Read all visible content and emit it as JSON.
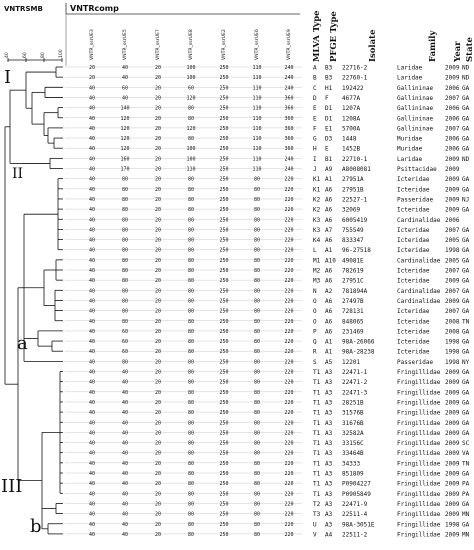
{
  "header": {
    "vntrsmb": "VNTRSMB",
    "vntrcomp": "VNTRcomp"
  },
  "scale": [
    "40",
    "60",
    "80",
    "100"
  ],
  "vntr_columns": [
    "VNTR_ssrUE3",
    "VNTR_ssrUE5",
    "VNTR_ssrUE7",
    "VNTR_ssrUE8",
    "VNTR_ssrUE2",
    "VNTR_ssrUE6",
    "VNTR_ssrUE9"
  ],
  "meta_columns": [
    "MLVA Type",
    "PFGE Type",
    "Isolate",
    "Family",
    "Year",
    "State"
  ],
  "groups": [
    {
      "label": "I",
      "fontsize": 18
    },
    {
      "label": "II",
      "fontsize": 14
    },
    {
      "label": "a",
      "fontsize": 18
    },
    {
      "label": "III",
      "fontsize": 18
    },
    {
      "label": "b",
      "fontsize": 18
    }
  ],
  "rows": [
    {
      "v": [
        "20",
        "40",
        "20",
        "100",
        "250",
        "110",
        "240"
      ],
      "mlva": "A",
      "pfge": "B3",
      "isolate": "22716-2",
      "family": "Laridae",
      "year": "2009",
      "state": "ND"
    },
    {
      "v": [
        "20",
        "40",
        "20",
        "100",
        "250",
        "110",
        "240"
      ],
      "mlva": "B",
      "pfge": "B3",
      "isolate": "22760-1",
      "family": "Laridae",
      "year": "2009",
      "state": "ND"
    },
    {
      "v": [
        "40",
        "60",
        "20",
        "60",
        "250",
        "110",
        "240"
      ],
      "mlva": "C",
      "pfge": "H1",
      "isolate": "192422",
      "family": "Gallininae",
      "year": "2006",
      "state": "GA"
    },
    {
      "v": [
        "40",
        "40",
        "20",
        "120",
        "250",
        "110",
        "360"
      ],
      "mlva": "D",
      "pfge": "F",
      "isolate": "4677A",
      "family": "Gallininae",
      "year": "2007",
      "state": "GA"
    },
    {
      "v": [
        "40",
        "140",
        "20",
        "80",
        "250",
        "110",
        "360"
      ],
      "mlva": "E",
      "pfge": "D1",
      "isolate": "1207A",
      "family": "Gallininae",
      "year": "2006",
      "state": "GA"
    },
    {
      "v": [
        "40",
        "120",
        "20",
        "80",
        "250",
        "110",
        "360"
      ],
      "mlva": "E",
      "pfge": "D1",
      "isolate": "1208A",
      "family": "Gallininae",
      "year": "2006",
      "state": "GA"
    },
    {
      "v": [
        "40",
        "120",
        "20",
        "120",
        "250",
        "110",
        "360"
      ],
      "mlva": "F",
      "pfge": "E1",
      "isolate": "5700A",
      "family": "Gallininae",
      "year": "2007",
      "state": "GA"
    },
    {
      "v": [
        "40",
        "120",
        "20",
        "80",
        "250",
        "110",
        "360"
      ],
      "mlva": "G",
      "pfge": "D3",
      "isolate": "1448",
      "family": "Muridae",
      "year": "2006",
      "state": "GA"
    },
    {
      "v": [
        "40",
        "120",
        "20",
        "100",
        "250",
        "110",
        "360"
      ],
      "mlva": "H",
      "pfge": "E",
      "isolate": "1452B",
      "family": "Muridae",
      "year": "2006",
      "state": "GA"
    },
    {
      "v": [
        "40",
        "160",
        "20",
        "100",
        "250",
        "110",
        "240"
      ],
      "mlva": "I",
      "pfge": "B1",
      "isolate": "22710-1",
      "family": "Laridae",
      "year": "2009",
      "state": "ND"
    },
    {
      "v": [
        "40",
        "170",
        "20",
        "110",
        "250",
        "110",
        "240"
      ],
      "mlva": "J",
      "pfge": "A9",
      "isolate": "A8008081",
      "family": "Psittacidae",
      "year": "2009",
      "state": ""
    },
    {
      "v": [
        "40",
        "80",
        "20",
        "80",
        "250",
        "80",
        "220"
      ],
      "mlva": "K1",
      "pfge": "A1",
      "isolate": "27951A",
      "family": "Icteridae",
      "year": "2009",
      "state": "GA"
    },
    {
      "v": [
        "40",
        "80",
        "20",
        "80",
        "250",
        "80",
        "220"
      ],
      "mlva": "K1",
      "pfge": "A6",
      "isolate": "27951B",
      "family": "Icteridae",
      "year": "2009",
      "state": "GA"
    },
    {
      "v": [
        "40",
        "80",
        "20",
        "80",
        "250",
        "80",
        "220"
      ],
      "mlva": "K2",
      "pfge": "A6",
      "isolate": "22527-1",
      "family": "Passeridae",
      "year": "2009",
      "state": "NJ"
    },
    {
      "v": [
        "40",
        "80",
        "20",
        "80",
        "250",
        "80",
        "220"
      ],
      "mlva": "K2",
      "pfge": "A6",
      "isolate": "32069",
      "family": "Icteridae",
      "year": "2009",
      "state": "GA"
    },
    {
      "v": [
        "40",
        "80",
        "20",
        "80",
        "250",
        "80",
        "220"
      ],
      "mlva": "K3",
      "pfge": "A6",
      "isolate": "6005419",
      "family": "Cardinalidae",
      "year": "2006",
      "state": ""
    },
    {
      "v": [
        "40",
        "80",
        "20",
        "80",
        "250",
        "80",
        "220"
      ],
      "mlva": "K3",
      "pfge": "A7",
      "isolate": "755549",
      "family": "Icteridae",
      "year": "2007",
      "state": "GA"
    },
    {
      "v": [
        "40",
        "80",
        "20",
        "80",
        "250",
        "80",
        "220"
      ],
      "mlva": "K4",
      "pfge": "A6",
      "isolate": "833347",
      "family": "Icteridae",
      "year": "2005",
      "state": "GA"
    },
    {
      "v": [
        "40",
        "80",
        "20",
        "80",
        "250",
        "80",
        "220"
      ],
      "mlva": "L",
      "pfge": "A1",
      "isolate": "96-27518",
      "family": "Icteridae",
      "year": "1998",
      "state": "GA"
    },
    {
      "v": [
        "40",
        "80",
        "20",
        "80",
        "250",
        "80",
        "220"
      ],
      "mlva": "M1",
      "pfge": "A10",
      "isolate": "49081E",
      "family": "Cardinalidae",
      "year": "2005",
      "state": "GA"
    },
    {
      "v": [
        "40",
        "80",
        "20",
        "80",
        "250",
        "80",
        "220"
      ],
      "mlva": "M2",
      "pfge": "A6",
      "isolate": "782619",
      "family": "Icteridae",
      "year": "2007",
      "state": "GA"
    },
    {
      "v": [
        "40",
        "80",
        "20",
        "80",
        "250",
        "80",
        "220"
      ],
      "mlva": "M3",
      "pfge": "A6",
      "isolate": "27951C",
      "family": "Icteridae",
      "year": "2009",
      "state": "GA"
    },
    {
      "v": [
        "40",
        "80",
        "20",
        "80",
        "250",
        "80",
        "220"
      ],
      "mlva": "N",
      "pfge": "A2",
      "isolate": "781894A",
      "family": "Cardinalidae",
      "year": "2007",
      "state": "GA"
    },
    {
      "v": [
        "40",
        "80",
        "20",
        "80",
        "250",
        "80",
        "220"
      ],
      "mlva": "O",
      "pfge": "A6",
      "isolate": "27497B",
      "family": "Cardinalidae",
      "year": "2009",
      "state": "GA"
    },
    {
      "v": [
        "40",
        "80",
        "20",
        "80",
        "250",
        "80",
        "220"
      ],
      "mlva": "O",
      "pfge": "A6",
      "isolate": "728131",
      "family": "Icteridae",
      "year": "2007",
      "state": "GA"
    },
    {
      "v": [
        "40",
        "80",
        "20",
        "80",
        "250",
        "80",
        "220"
      ],
      "mlva": "O",
      "pfge": "A6",
      "isolate": "848065",
      "family": "Icteridae",
      "year": "2008",
      "state": "TN"
    },
    {
      "v": [
        "40",
        "60",
        "20",
        "80",
        "250",
        "80",
        "220"
      ],
      "mlva": "P",
      "pfge": "A6",
      "isolate": "231469",
      "family": "Icteridae",
      "year": "2008",
      "state": "GA"
    },
    {
      "v": [
        "40",
        "60",
        "20",
        "80",
        "250",
        "80",
        "220"
      ],
      "mlva": "Q",
      "pfge": "A1",
      "isolate": "98A-26066",
      "family": "Icteridae",
      "year": "1998",
      "state": "GA"
    },
    {
      "v": [
        "40",
        "60",
        "20",
        "80",
        "250",
        "80",
        "220"
      ],
      "mlva": "R",
      "pfge": "A1",
      "isolate": "98A-28238",
      "family": "Icteridae",
      "year": "1998",
      "state": "GA"
    },
    {
      "v": [
        "40",
        "80",
        "20",
        "80",
        "250",
        "80",
        "220"
      ],
      "mlva": "S",
      "pfge": "A5",
      "isolate": "12201",
      "family": "Passeridae",
      "year": "1998",
      "state": "NY"
    },
    {
      "v": [
        "40",
        "40",
        "20",
        "80",
        "250",
        "80",
        "220"
      ],
      "mlva": "T1",
      "pfge": "A3",
      "isolate": "22471-1",
      "family": "Fringillidae",
      "year": "2009",
      "state": "GA"
    },
    {
      "v": [
        "40",
        "40",
        "20",
        "80",
        "250",
        "80",
        "220"
      ],
      "mlva": "T1",
      "pfge": "A3",
      "isolate": "22471-2",
      "family": "Fringillidae",
      "year": "2009",
      "state": "GA"
    },
    {
      "v": [
        "40",
        "40",
        "20",
        "80",
        "250",
        "80",
        "220"
      ],
      "mlva": "T1",
      "pfge": "A3",
      "isolate": "22471-3",
      "family": "Fringillidae",
      "year": "2009",
      "state": "GA"
    },
    {
      "v": [
        "40",
        "40",
        "20",
        "80",
        "250",
        "80",
        "220"
      ],
      "mlva": "T1",
      "pfge": "A3",
      "isolate": "28251B",
      "family": "Fringillidae",
      "year": "2009",
      "state": "GA"
    },
    {
      "v": [
        "40",
        "40",
        "20",
        "80",
        "250",
        "80",
        "220"
      ],
      "mlva": "T1",
      "pfge": "A3",
      "isolate": "31576B",
      "family": "Fringillidae",
      "year": "2009",
      "state": "GA"
    },
    {
      "v": [
        "40",
        "40",
        "20",
        "80",
        "250",
        "80",
        "220"
      ],
      "mlva": "T1",
      "pfge": "A3",
      "isolate": "31676B",
      "family": "Fringillidae",
      "year": "2009",
      "state": "GA"
    },
    {
      "v": [
        "40",
        "40",
        "20",
        "80",
        "250",
        "80",
        "220"
      ],
      "mlva": "T1",
      "pfge": "A3",
      "isolate": "32582A",
      "family": "Fringillidae",
      "year": "2009",
      "state": "GA"
    },
    {
      "v": [
        "40",
        "40",
        "20",
        "80",
        "250",
        "80",
        "220"
      ],
      "mlva": "T1",
      "pfge": "A3",
      "isolate": "33156C",
      "family": "Fringillidae",
      "year": "2009",
      "state": "SC"
    },
    {
      "v": [
        "40",
        "40",
        "20",
        "80",
        "250",
        "80",
        "220"
      ],
      "mlva": "T1",
      "pfge": "A3",
      "isolate": "33464B",
      "family": "Fringillidae",
      "year": "2009",
      "state": "VA"
    },
    {
      "v": [
        "40",
        "40",
        "20",
        "80",
        "250",
        "80",
        "220"
      ],
      "mlva": "T1",
      "pfge": "A3",
      "isolate": "34333",
      "family": "Fringillidae",
      "year": "2009",
      "state": "TN"
    },
    {
      "v": [
        "40",
        "40",
        "20",
        "80",
        "250",
        "80",
        "220"
      ],
      "mlva": "T1",
      "pfge": "A3",
      "isolate": "851809",
      "family": "Fringillidae",
      "year": "2009",
      "state": "GA"
    },
    {
      "v": [
        "40",
        "40",
        "20",
        "80",
        "250",
        "80",
        "220"
      ],
      "mlva": "T1",
      "pfge": "A3",
      "isolate": "P0904227",
      "family": "Fringillidae",
      "year": "2009",
      "state": "PA"
    },
    {
      "v": [
        "40",
        "40",
        "20",
        "80",
        "250",
        "80",
        "220"
      ],
      "mlva": "T1",
      "pfge": "A3",
      "isolate": "P0905849",
      "family": "Fringillidae",
      "year": "2009",
      "state": "PA"
    },
    {
      "v": [
        "40",
        "40",
        "20",
        "80",
        "250",
        "80",
        "220"
      ],
      "mlva": "T2",
      "pfge": "A3",
      "isolate": "22471-9",
      "family": "Fringillidae",
      "year": "2009",
      "state": "GA"
    },
    {
      "v": [
        "40",
        "40",
        "20",
        "80",
        "250",
        "80",
        "220"
      ],
      "mlva": "T3",
      "pfge": "A3",
      "isolate": "22511-4",
      "family": "Fringillidae",
      "year": "2009",
      "state": "MN"
    },
    {
      "v": [
        "40",
        "40",
        "20",
        "80",
        "250",
        "80",
        "220"
      ],
      "mlva": "U",
      "pfge": "A3",
      "isolate": "98A-3051E",
      "family": "Fringillidae",
      "year": "1998",
      "state": "GA"
    },
    {
      "v": [
        "40",
        "40",
        "20",
        "80",
        "250",
        "80",
        "220"
      ],
      "mlva": "V",
      "pfge": "A4",
      "isolate": "22511-2",
      "family": "Fringillidae",
      "year": "2009",
      "state": "MN"
    }
  ]
}
